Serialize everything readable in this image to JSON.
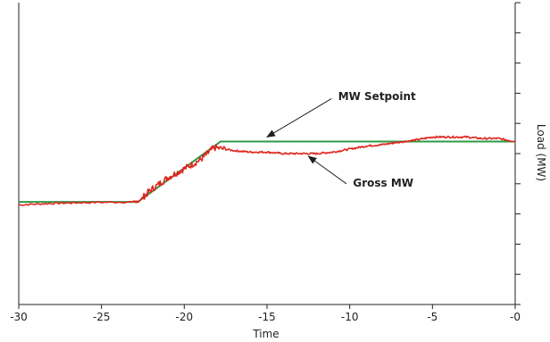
{
  "chart_data": {
    "type": "line",
    "title": "",
    "xlabel": "Time",
    "ylabel": "Load (MW)",
    "xlim": [
      -30,
      0
    ],
    "ylim": [
      0,
      10
    ],
    "x_ticks": [
      -30,
      -25,
      -20,
      -15,
      -10,
      -5,
      0
    ],
    "x_tick_labels": [
      "-30",
      "-25",
      "-20",
      "-15",
      "-10",
      "-5",
      "-0"
    ],
    "y_ticks": [
      0,
      1,
      2,
      3,
      4,
      5,
      6,
      7,
      8,
      9,
      10
    ],
    "y_tick_labels_shown": false,
    "grid": false,
    "series": [
      {
        "name": "MW Setpoint",
        "color": "#2e9a47",
        "x": [
          -30,
          -22.8,
          -17.8,
          0
        ],
        "y": [
          3.4,
          3.4,
          5.4,
          5.4
        ]
      },
      {
        "name": "Gross MW",
        "color": "#e0261d",
        "x": [
          -30,
          -28,
          -26,
          -23,
          -22.8,
          -22,
          -21,
          -20,
          -19,
          -18.2,
          -17,
          -16,
          -15,
          -14,
          -13,
          -12,
          -11,
          -10,
          -9,
          -8,
          -7,
          -6,
          -5,
          -4,
          -3,
          -2,
          -1,
          0
        ],
        "y": [
          3.3,
          3.35,
          3.38,
          3.4,
          3.4,
          3.8,
          4.2,
          4.5,
          4.8,
          5.2,
          5.1,
          5.05,
          5.05,
          5.0,
          5.0,
          5.0,
          5.05,
          5.15,
          5.25,
          5.3,
          5.38,
          5.45,
          5.55,
          5.55,
          5.55,
          5.5,
          5.5,
          5.4
        ]
      }
    ],
    "annotations": [
      {
        "text": "MW Setpoint",
        "points_to_series": "MW Setpoint",
        "x": -15,
        "y": 5.4
      },
      {
        "text": "Gross MW",
        "points_to_series": "Gross MW",
        "x": -12.5,
        "y": 5.0
      }
    ]
  }
}
